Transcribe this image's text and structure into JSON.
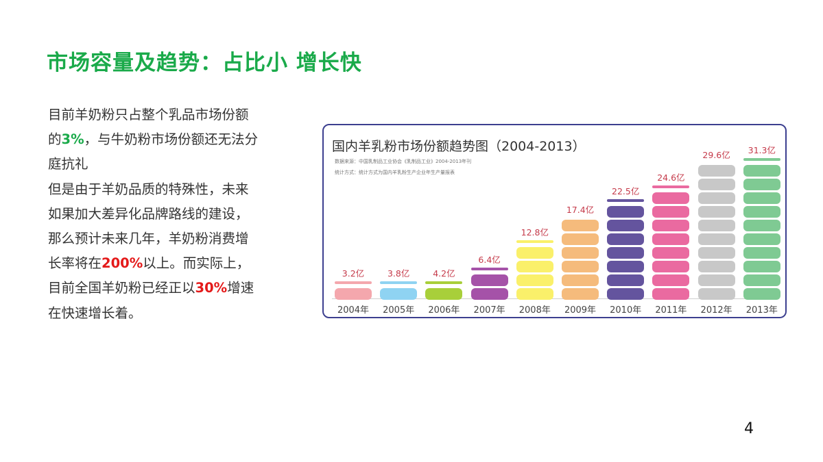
{
  "slide": {
    "title": "市场容量及趋势：占比小 增长快",
    "page_number": "4"
  },
  "body": {
    "lines": [
      {
        "segments": [
          {
            "text": "目前羊奶粉只占整个乳品市场份额",
            "style": "normal"
          }
        ]
      },
      {
        "segments": [
          {
            "text": "的",
            "style": "normal"
          },
          {
            "text": "3%",
            "style": "green"
          },
          {
            "text": "，与牛奶粉市场份额还无法分",
            "style": "normal"
          }
        ]
      },
      {
        "segments": [
          {
            "text": "庭抗礼",
            "style": "normal"
          }
        ]
      },
      {
        "segments": [
          {
            "text": "但是由于羊奶品质的特殊性，未来",
            "style": "normal"
          }
        ]
      },
      {
        "segments": [
          {
            "text": "如果加大差异化品牌路线的建设，",
            "style": "normal"
          }
        ]
      },
      {
        "segments": [
          {
            "text": "那么预计未来几年，羊奶粉消费增",
            "style": "normal"
          }
        ]
      },
      {
        "segments": [
          {
            "text": "长率将在",
            "style": "normal"
          },
          {
            "text": "200%",
            "style": "red"
          },
          {
            "text": "以上。而实际上，",
            "style": "normal"
          }
        ]
      },
      {
        "segments": [
          {
            "text": "目前全国羊奶粉已经正以",
            "style": "normal"
          },
          {
            "text": "30%",
            "style": "red"
          },
          {
            "text": "增速",
            "style": "normal"
          }
        ]
      },
      {
        "segments": [
          {
            "text": "在快速增长着。",
            "style": "normal"
          }
        ]
      }
    ],
    "colors": {
      "text": "#333333",
      "green": "#1aaa4a",
      "red": "#e41a1a"
    }
  },
  "chart_data": {
    "type": "bar",
    "title": "国内羊乳粉市场份额趋势图（2004-2013）",
    "notes": [
      "数据来源：中国乳制品工业协会《乳制品工业》2004-2013年刊",
      "统计方式：统计方式为国内羊乳粉生产企业年生产量报表"
    ],
    "xlabel": "",
    "ylabel": "",
    "unit": "亿",
    "categories": [
      "2004年",
      "2005年",
      "2006年",
      "2007年",
      "2008年",
      "2009年",
      "2010年",
      "2011年",
      "2012年",
      "2013年"
    ],
    "values": [
      3.2,
      3.8,
      4.2,
      6.4,
      12.8,
      17.4,
      22.5,
      24.6,
      29.6,
      31.3
    ],
    "value_labels": [
      "3.2亿",
      "3.8亿",
      "4.2亿",
      "6.4亿",
      "12.8亿",
      "17.4亿",
      "22.5亿",
      "24.6亿",
      "29.6亿",
      "31.3亿"
    ],
    "blocks": [
      1,
      1,
      1,
      2,
      4,
      6,
      7,
      8,
      10,
      10
    ],
    "has_cap": [
      true,
      true,
      true,
      true,
      true,
      false,
      true,
      true,
      false,
      true
    ],
    "bar_colors": [
      "#f4a7ad",
      "#8fd3f2",
      "#a8cf3a",
      "#a552a8",
      "#faf06a",
      "#f5bb7c",
      "#64549e",
      "#ea6aa0",
      "#c8c8c8",
      "#7fca93"
    ],
    "grid": false,
    "legend": "none",
    "frame_color": "#3c3f8f",
    "label_color": "#c53a4a"
  }
}
